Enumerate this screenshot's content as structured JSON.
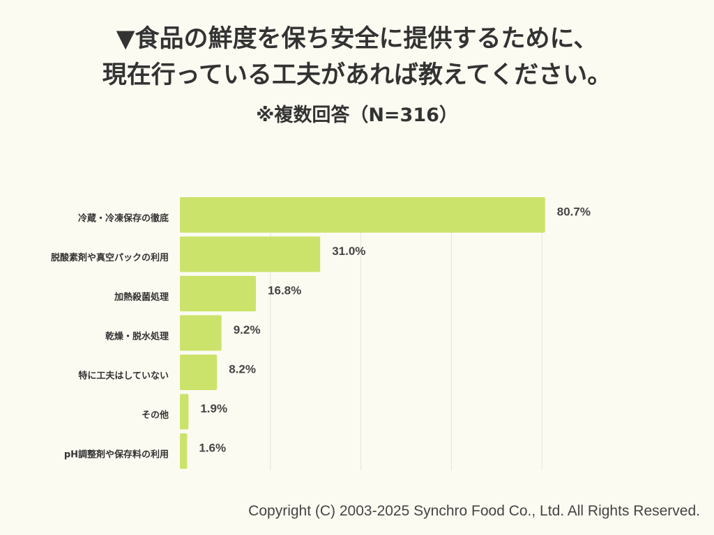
{
  "title": {
    "line1": "▼食品の鮮度を保ち安全に提供するために、",
    "line2": "現在行っている工夫があれば教えてください。"
  },
  "subtitle": "※複数回答（N=316）",
  "chart_data": {
    "type": "bar",
    "orientation": "horizontal",
    "categories": [
      "冷蔵・冷凍保存の徹底",
      "脱酸素剤や真空パックの利用",
      "加熱殺菌処理",
      "乾燥・脱水処理",
      "特に工夫はしていない",
      "その他",
      "pH調整剤や保存料の利用"
    ],
    "values": [
      80.7,
      31.0,
      16.8,
      9.2,
      8.2,
      1.9,
      1.6
    ],
    "value_labels": [
      "80.7%",
      "31.0%",
      "16.8%",
      "9.2%",
      "8.2%",
      "1.9%",
      "1.6%"
    ],
    "xlim": [
      0,
      100
    ],
    "grid": true,
    "bar_color": "#cce36b",
    "grid_color": "#e4e4dc"
  },
  "copyright": "Copyright (C) 2003-2025  Synchro Food Co., Ltd. All Rights Reserved."
}
